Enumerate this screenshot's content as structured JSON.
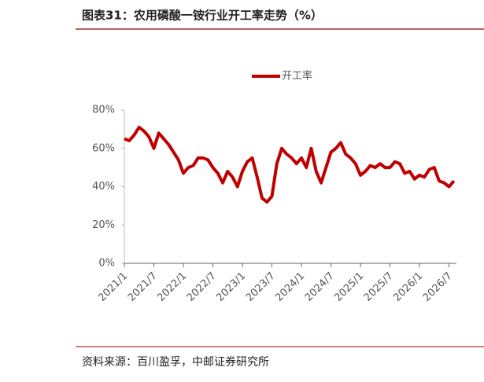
{
  "chart_data": {
    "type": "line",
    "title": "图表31：农用磷酸一铵行业开工率走势（%）",
    "source": "资料来源：百川盈孚，中邮证券研究所",
    "categories": [
      "2021/1",
      null,
      null,
      null,
      null,
      null,
      "2021/7",
      null,
      null,
      null,
      null,
      null,
      "2022/1",
      null,
      null,
      null,
      null,
      null,
      "2022/7",
      null,
      null,
      null,
      null,
      null,
      "2023/1",
      null,
      null,
      null,
      null,
      null,
      "2023/7",
      null,
      null,
      null,
      null,
      null,
      "2024/1",
      null,
      null,
      null,
      null,
      null,
      "2024/7",
      null,
      null,
      null,
      null,
      null,
      "2025/1",
      null,
      null,
      null,
      null,
      null,
      "2025/7",
      null,
      null,
      null,
      null,
      null,
      "2026/1",
      null,
      null,
      null,
      null,
      null,
      "2026/7",
      null
    ],
    "series": [
      {
        "name": "开工率",
        "color": "#c00000",
        "values": [
          65,
          64,
          67,
          71,
          69,
          66,
          60,
          68,
          65,
          62,
          58,
          54,
          47,
          50,
          51,
          55,
          55,
          54,
          50,
          47,
          42,
          48,
          45,
          40,
          48,
          53,
          55,
          45,
          34,
          32,
          35,
          52,
          60,
          57,
          55,
          52,
          55,
          50,
          60,
          48,
          42,
          50,
          58,
          60,
          63,
          57,
          55,
          52,
          46,
          48,
          51,
          50,
          52,
          50,
          50,
          53,
          52,
          47,
          48,
          44,
          46,
          45,
          49,
          50,
          43,
          42,
          40,
          43
        ]
      }
    ],
    "ylim": [
      0,
      80
    ],
    "yticks": [
      {
        "value": 0,
        "label": "0%"
      },
      {
        "value": 20,
        "label": "20%"
      },
      {
        "value": 40,
        "label": "40%"
      },
      {
        "value": 60,
        "label": "60%"
      },
      {
        "value": 80,
        "label": "80%"
      }
    ],
    "legend": "top"
  }
}
